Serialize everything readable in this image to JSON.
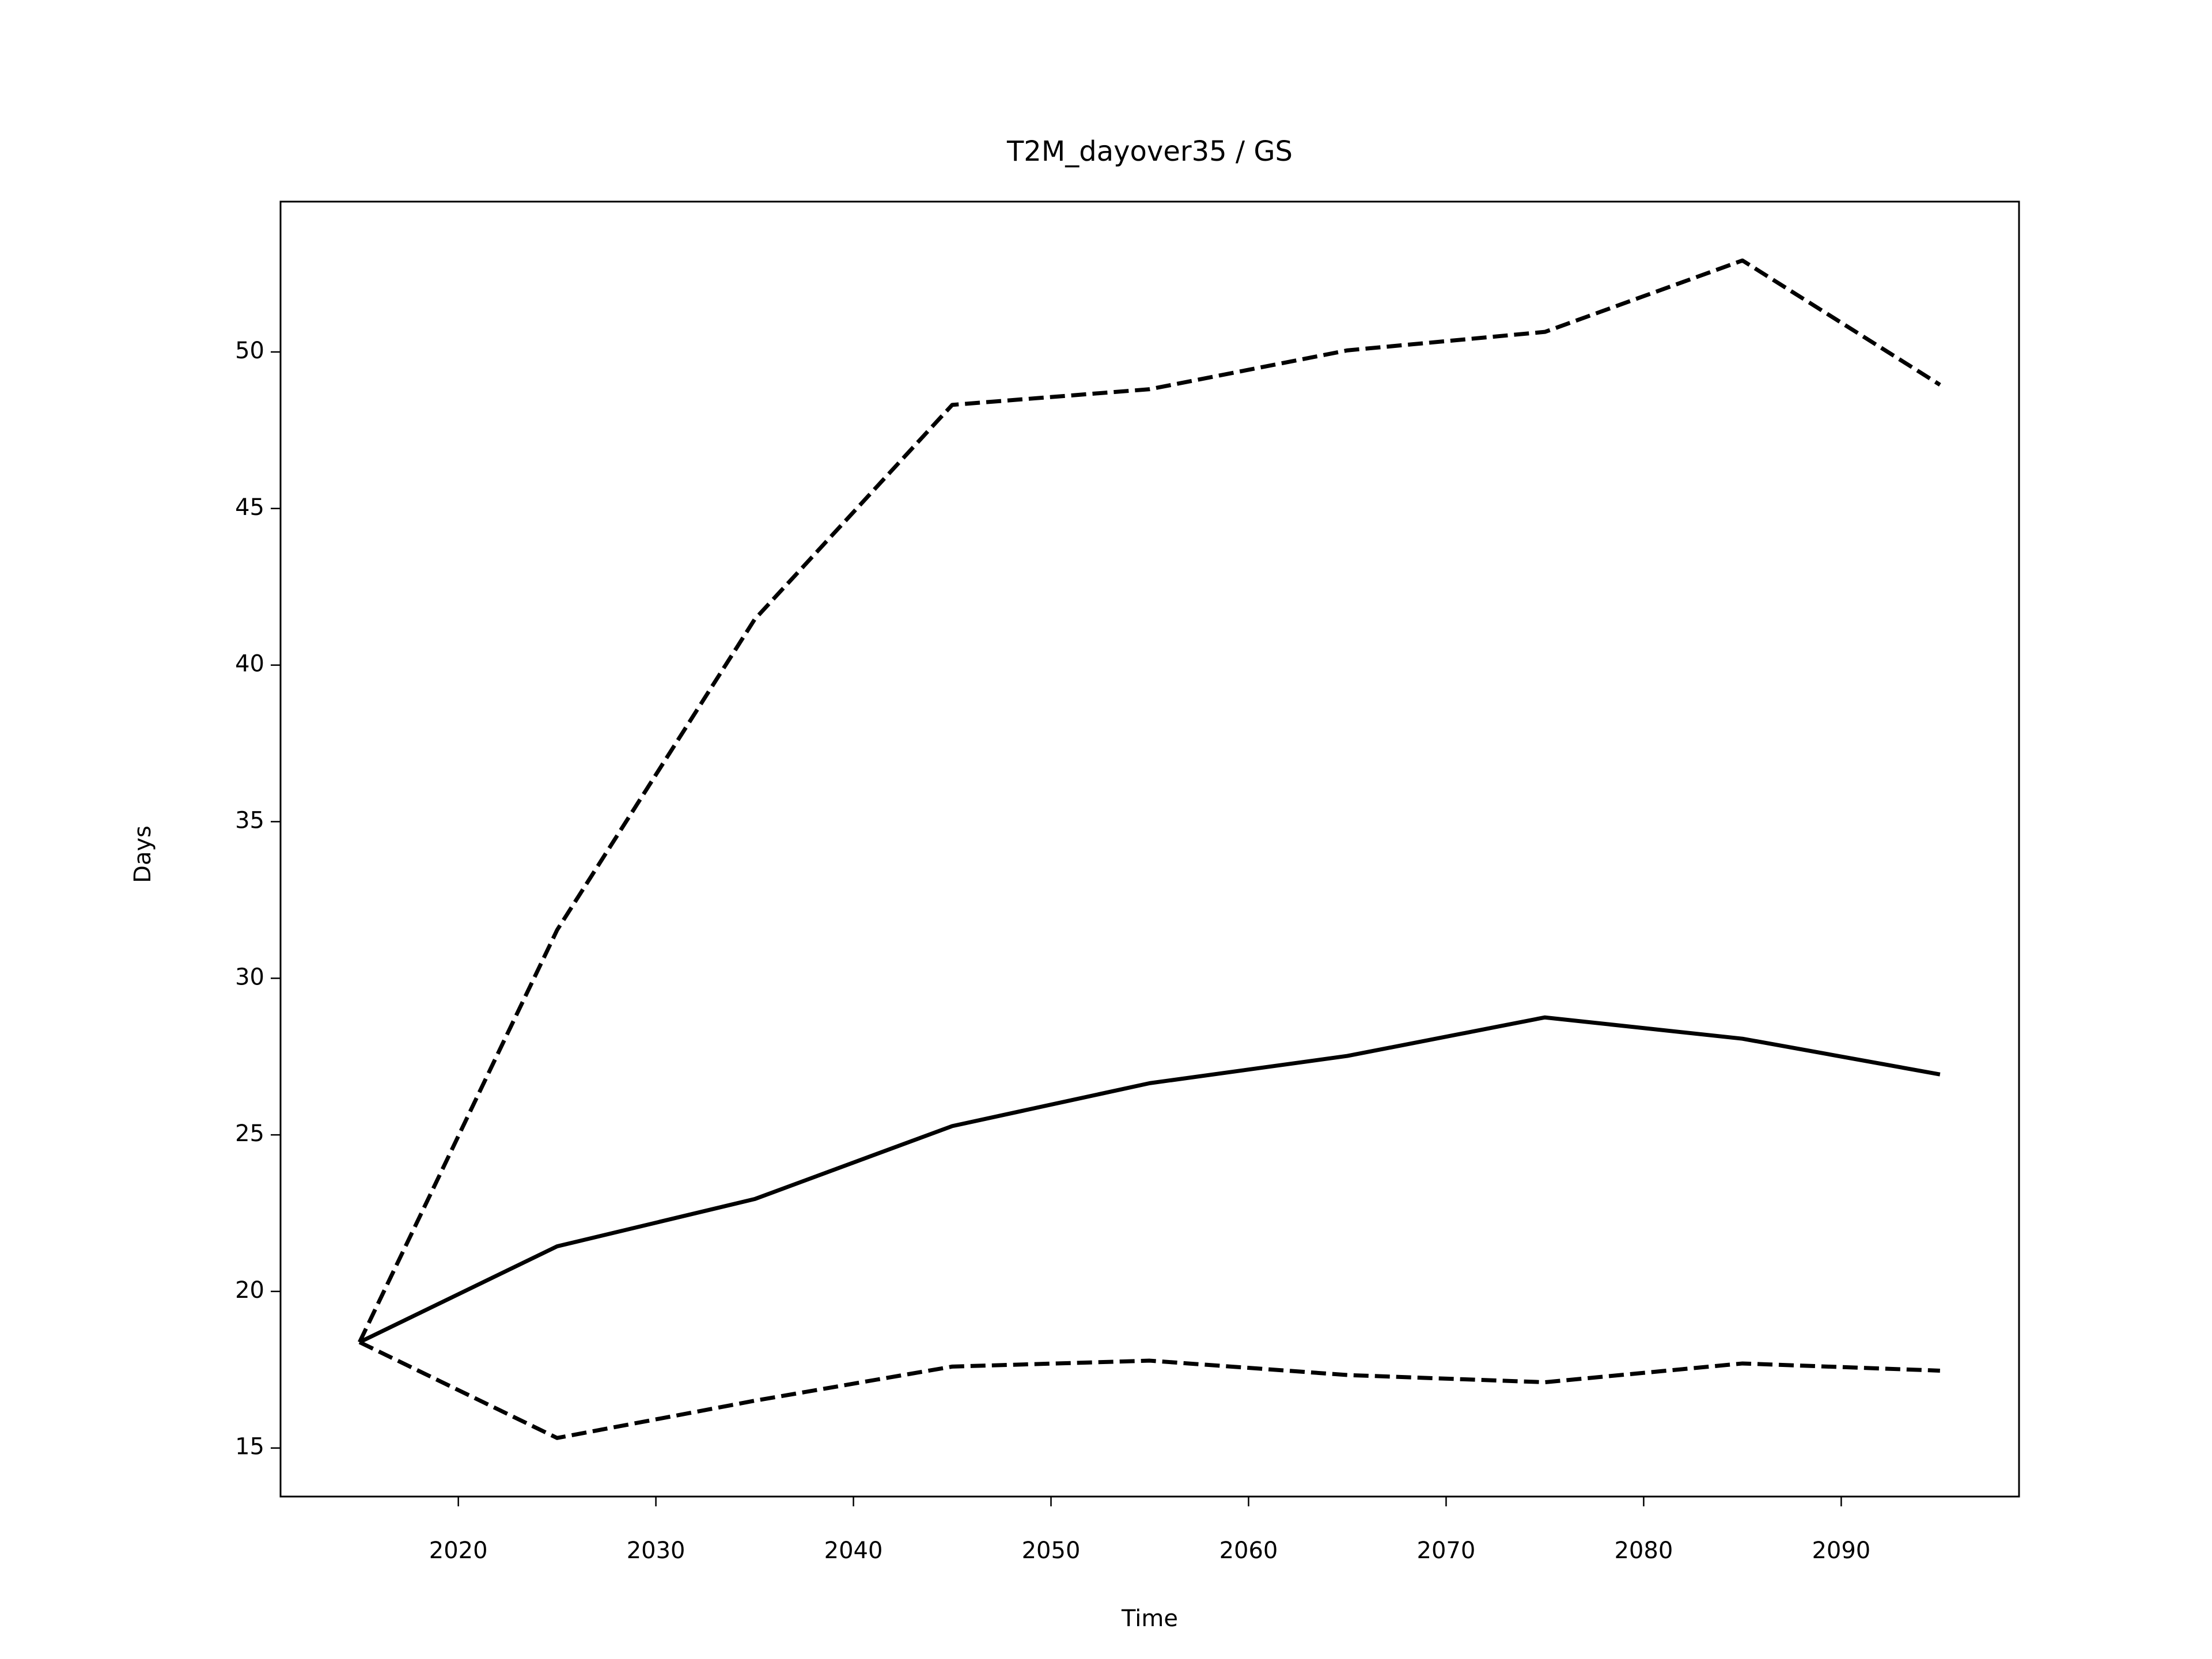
{
  "chart_data": {
    "type": "line",
    "title": "T2M_dayover35 / GS",
    "x_label": "Time",
    "y_label": "Days",
    "x": [
      2015,
      2025,
      2035,
      2045,
      2055,
      2065,
      2075,
      2085,
      2095
    ],
    "series": [
      {
        "color": "#000000",
        "style": "solid",
        "values": [
          18.38,
          21.44,
          22.95,
          25.28,
          26.65,
          27.52,
          28.75,
          28.07,
          26.93
        ]
      },
      {
        "color": "#000000",
        "style": "dashed",
        "values": [
          18.38,
          31.54,
          41.46,
          48.31,
          48.81,
          50.05,
          50.64,
          52.92,
          48.95
        ]
      },
      {
        "color": "#000000",
        "style": "dashed",
        "values": [
          18.38,
          15.32,
          16.51,
          17.6,
          17.79,
          17.33,
          17.1,
          17.7,
          17.47
        ]
      }
    ],
    "xlim": [
      2011,
      2099
    ],
    "xticks": [
      2020,
      2030,
      2040,
      2050,
      2060,
      2070,
      2080,
      2090
    ],
    "ylim": [
      13.45,
      54.8
    ],
    "yticks": [
      15,
      20,
      25,
      30,
      35,
      40,
      45,
      50
    ],
    "grid": false
  }
}
